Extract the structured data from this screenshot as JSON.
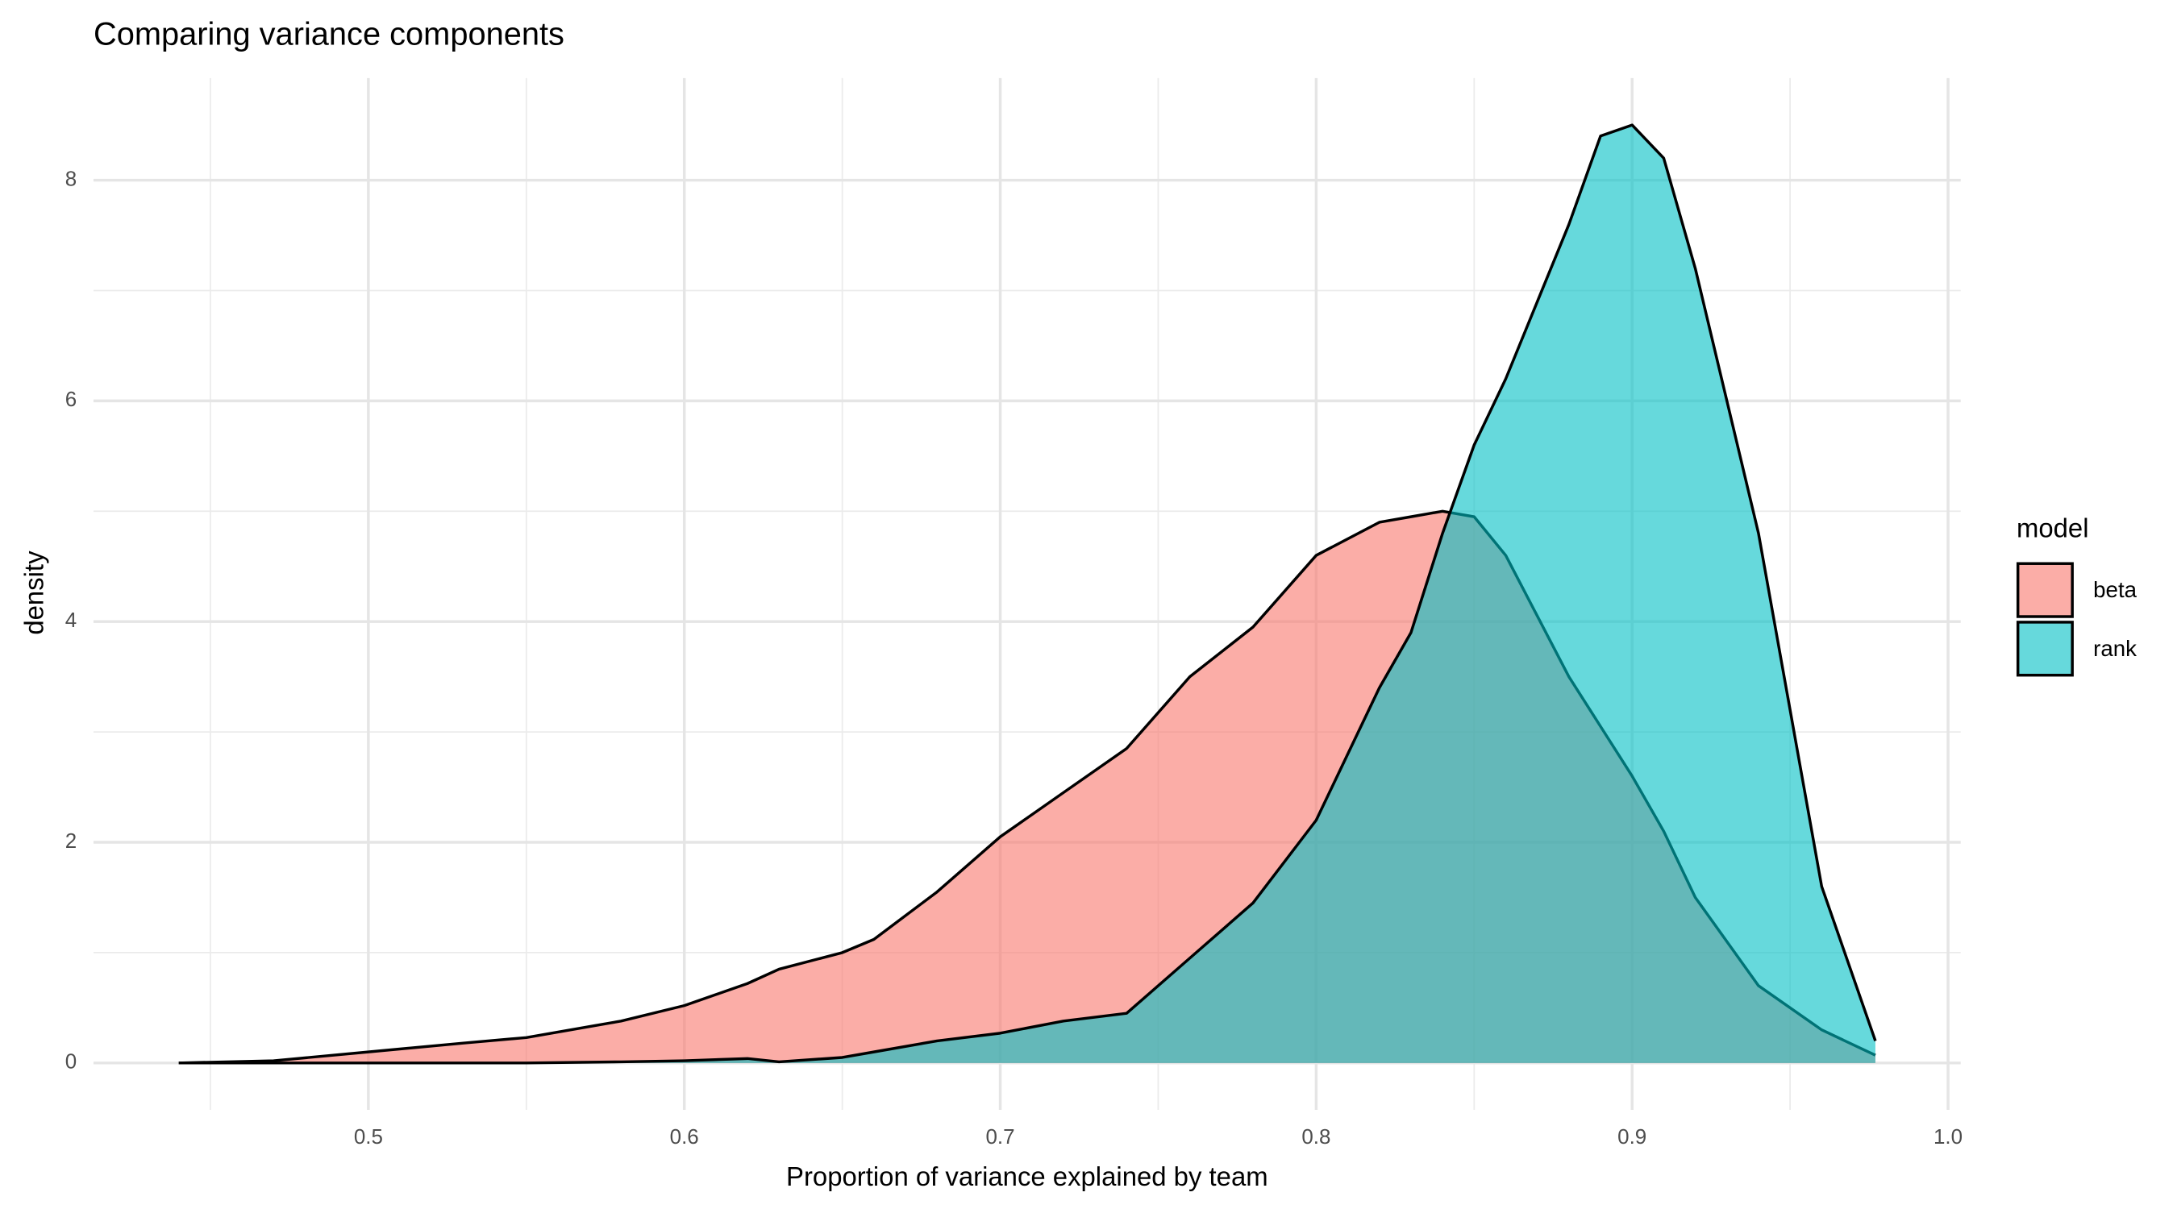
{
  "chart_data": {
    "type": "density",
    "title": "Comparing variance components",
    "x_label": "Proportion of variance explained by team",
    "y_label": "density",
    "legend_title": "model",
    "legend_position": "right",
    "grid": true,
    "x": [
      0.44,
      0.47,
      0.5,
      0.53,
      0.55,
      0.58,
      0.6,
      0.62,
      0.63,
      0.65,
      0.66,
      0.68,
      0.7,
      0.72,
      0.74,
      0.76,
      0.78,
      0.8,
      0.82,
      0.83,
      0.84,
      0.85,
      0.86,
      0.88,
      0.89,
      0.9,
      0.91,
      0.92,
      0.94,
      0.96,
      0.977
    ],
    "series": [
      {
        "name": "beta",
        "color": "#F8766D",
        "values": [
          0,
          0.02,
          0.1,
          0.18,
          0.23,
          0.38,
          0.52,
          0.72,
          0.85,
          1.0,
          1.12,
          1.55,
          2.05,
          2.45,
          2.85,
          3.5,
          3.95,
          4.6,
          4.9,
          4.95,
          5.0,
          4.95,
          4.6,
          3.5,
          3.05,
          2.6,
          2.1,
          1.5,
          0.7,
          0.3,
          0.07
        ]
      },
      {
        "name": "rank",
        "color": "#00BFC4",
        "values": [
          0,
          0,
          0,
          0,
          0,
          0.01,
          0.02,
          0.04,
          0.01,
          0.05,
          0.1,
          0.2,
          0.27,
          0.38,
          0.45,
          0.95,
          1.45,
          2.2,
          3.4,
          3.9,
          4.8,
          5.6,
          6.2,
          7.6,
          8.4,
          8.5,
          8.2,
          7.2,
          4.8,
          1.6,
          0.2
        ]
      }
    ],
    "fill_opacity": 0.6,
    "xlim": [
      0.413,
      1.004
    ],
    "ylim": [
      -0.425,
      8.925
    ],
    "xticks": [
      0.5,
      0.6,
      0.7,
      0.8,
      0.9,
      {
        "value": 1.0,
        "label": "1.0"
      }
    ],
    "yticks": [
      0,
      2,
      4,
      6,
      8
    ],
    "x_minor_breaks": [
      0.45,
      0.55,
      0.65,
      0.75,
      0.85,
      0.95
    ],
    "y_minor_breaks": [
      1,
      3,
      5,
      7
    ]
  }
}
